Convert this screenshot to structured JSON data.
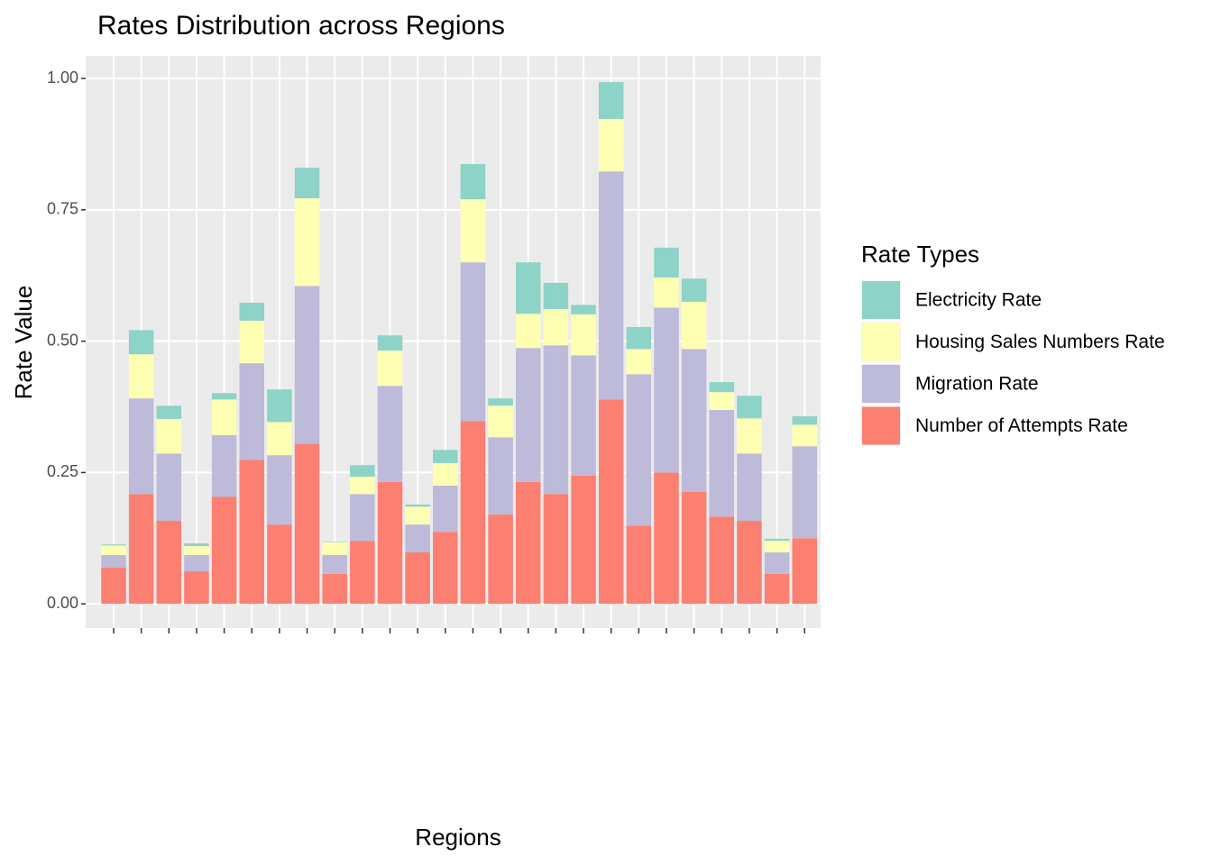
{
  "chart_data": {
    "type": "stacked_bar",
    "title": "Rates Distribution across Regions",
    "x_label": "Regions",
    "y_label": "Rate Value",
    "legend_title": "Rate Types",
    "legend_position": "right",
    "grid": true,
    "categories": [
      null,
      null,
      null,
      null,
      null,
      null,
      null,
      null,
      null,
      null,
      null,
      null,
      null,
      null,
      null,
      null,
      null,
      null,
      null,
      null,
      null,
      null,
      null,
      null,
      null,
      null
    ],
    "ylim": [
      -0.046,
      1.043
    ],
    "yticks": [
      {
        "value": 0,
        "label": "0.00"
      },
      {
        "value": 0.25,
        "label": "0.25"
      },
      {
        "value": 0.5,
        "label": "0.50"
      },
      {
        "value": 0.75,
        "label": "0.75"
      },
      {
        "value": 1,
        "label": "1.00"
      }
    ],
    "series": [
      {
        "name": "Electricity Rate",
        "color": "#8DD3C7",
        "values": [
          0.002,
          0.046,
          0.025,
          0.005,
          0.012,
          0.034,
          0.062,
          0.058,
          0.001,
          0.022,
          0.029,
          0.004,
          0.025,
          0.067,
          0.014,
          0.098,
          0.05,
          0.018,
          0.07,
          0.042,
          0.057,
          0.044,
          0.019,
          0.043,
          0.004,
          0.016
        ]
      },
      {
        "name": "Housing Sales Numbers Rate",
        "color": "#FFFFB3",
        "values": [
          0.018,
          0.084,
          0.066,
          0.017,
          0.068,
          0.081,
          0.063,
          0.167,
          0.024,
          0.033,
          0.067,
          0.034,
          0.043,
          0.12,
          0.06,
          0.065,
          0.069,
          0.078,
          0.1,
          0.048,
          0.057,
          0.09,
          0.034,
          0.067,
          0.022,
          0.041
        ]
      },
      {
        "name": "Migration Rate",
        "color": "#BEBADA",
        "values": [
          0.024,
          0.182,
          0.128,
          0.031,
          0.117,
          0.184,
          0.132,
          0.3,
          0.036,
          0.089,
          0.183,
          0.053,
          0.088,
          0.302,
          0.147,
          0.255,
          0.283,
          0.229,
          0.434,
          0.288,
          0.314,
          0.272,
          0.203,
          0.128,
          0.041,
          0.175
        ]
      },
      {
        "name": "Number of Attempts Rate",
        "color": "#FB8072",
        "values": [
          0.069,
          0.209,
          0.158,
          0.062,
          0.204,
          0.274,
          0.151,
          0.305,
          0.057,
          0.12,
          0.232,
          0.098,
          0.137,
          0.348,
          0.17,
          0.232,
          0.209,
          0.244,
          0.389,
          0.149,
          0.25,
          0.213,
          0.166,
          0.158,
          0.057,
          0.125
        ]
      }
    ]
  }
}
